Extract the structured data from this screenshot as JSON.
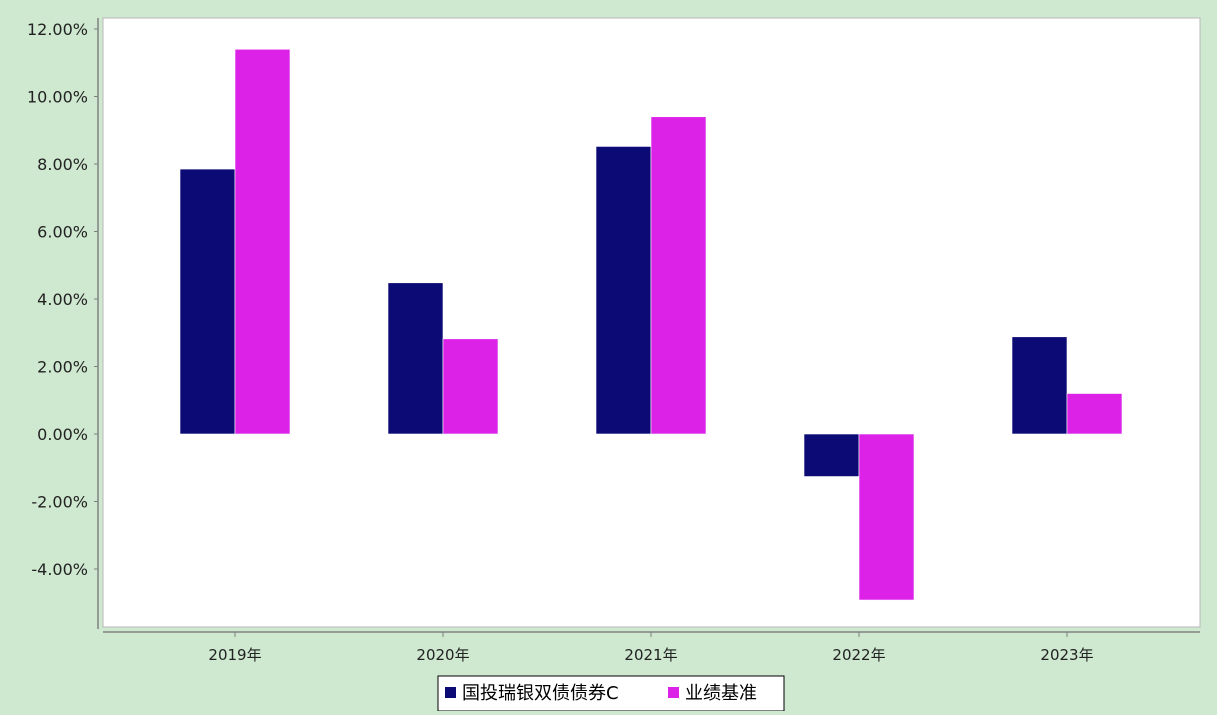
{
  "chart_data": {
    "type": "bar",
    "categories": [
      "2019年",
      "2020年",
      "2021年",
      "2022年",
      "2023年"
    ],
    "series": [
      {
        "name": "国投瑞银双债债券C",
        "values": [
          7.85,
          4.48,
          8.52,
          -1.26,
          2.88
        ],
        "color": "#0c0a75"
      },
      {
        "name": "业绩基准",
        "values": [
          11.4,
          2.82,
          9.4,
          -4.92,
          1.2
        ],
        "color": "#dd22e8"
      }
    ],
    "yticks": [
      "12.00%",
      "10.00%",
      "8.00%",
      "6.00%",
      "4.00%",
      "2.00%",
      "0.00%",
      "-2.00%",
      "-4.00%"
    ],
    "ylim": [
      -5.8,
      12.0
    ],
    "title": "",
    "xlabel": "",
    "ylabel": "",
    "legend_position": "bottom-center",
    "grid": false
  },
  "colors": {
    "background": "#cfe8d0",
    "plot_background": "#ffffff",
    "axis": "#808080"
  }
}
